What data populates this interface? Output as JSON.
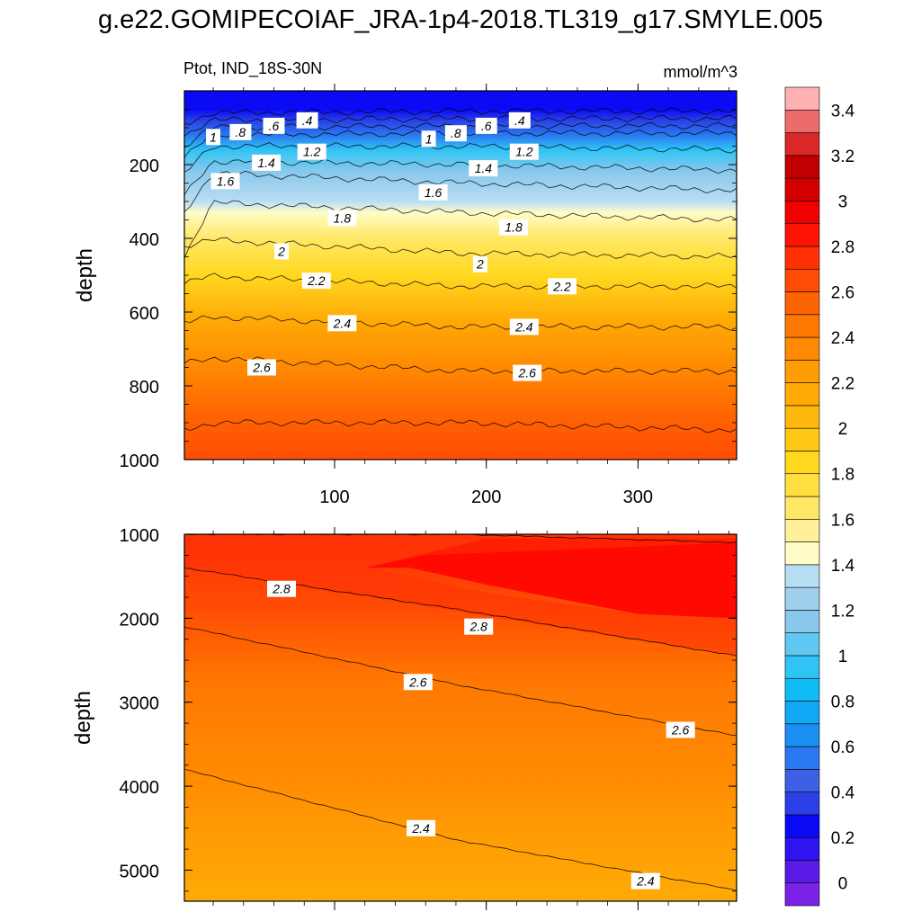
{
  "title": "g.e22.GOMIPECOIAF_JRA-1p4-2018.TL319_g17.SMYLE.005",
  "chart_data": {
    "type": "heatmap",
    "variable_label": "Ptot, IND_18S-30N",
    "units": "mmol/m^3",
    "x_range": [
      1,
      365
    ],
    "x_ticks": [
      "100",
      "200",
      "300"
    ],
    "x_tick_values": [
      100,
      200,
      300
    ],
    "colorbar": {
      "levels": [
        0,
        0.2,
        0.4,
        0.6,
        0.8,
        1,
        1.2,
        1.4,
        1.6,
        1.8,
        2,
        2.2,
        2.4,
        2.6,
        2.8,
        3,
        3.2,
        3.4
      ],
      "labels": [
        "0",
        "0.2",
        "0.4",
        "0.6",
        "0.8",
        "1",
        "1.2",
        "1.4",
        "1.6",
        "1.8",
        "2",
        "2.2",
        "2.4",
        "2.6",
        "2.8",
        "3",
        "3.2",
        "3.4"
      ],
      "colors": [
        "#7a22e6",
        "#5a1ae6",
        "#2e14f0",
        "#0a0af5",
        "#2a40e6",
        "#3e60e6",
        "#2a78f0",
        "#1a90f5",
        "#12a8f8",
        "#10bcf5",
        "#30c4f5",
        "#60c8f0",
        "#8ac8ec",
        "#a0d0ee",
        "#b8def4",
        "#fffcc8",
        "#fff09a",
        "#ffe866",
        "#ffe040",
        "#ffd820",
        "#ffc814",
        "#ffb80c",
        "#ffaa06",
        "#ff9c04",
        "#ff8a02",
        "#ff7802",
        "#ff6402",
        "#ff4c04",
        "#ff3006",
        "#ff1404",
        "#f00000",
        "#d40000",
        "#c00000",
        "#dc2828",
        "#ec6c6c",
        "#ffb0b0"
      ]
    },
    "panels": [
      {
        "name": "upper",
        "ylabel": "depth",
        "y_range": [
          0,
          1000
        ],
        "y_ticks": [
          "200",
          "400",
          "600",
          "800",
          "1000"
        ],
        "y_tick_values": [
          200,
          400,
          600,
          800,
          1000
        ],
        "contour_depths": [
          {
            "level": 0.4,
            "depth": [
              60,
              55,
              55
            ]
          },
          {
            "level": 0.6,
            "depth": [
              80,
              75,
              75
            ]
          },
          {
            "level": 0.8,
            "depth": [
              100,
              95,
              95
            ]
          },
          {
            "level": 1.0,
            "depth": [
              120,
              115,
              115
            ]
          },
          {
            "level": 1.2,
            "depth": [
              150,
              150,
              160
            ]
          },
          {
            "level": 1.4,
            "depth": [
              190,
              200,
              215
            ]
          },
          {
            "level": 1.6,
            "depth": [
              220,
              250,
              270
            ]
          },
          {
            "level": 1.8,
            "depth": [
              300,
              330,
              350
            ]
          },
          {
            "level": 2.0,
            "depth": [
              400,
              440,
              450
            ]
          },
          {
            "level": 2.2,
            "depth": [
              500,
              530,
              530
            ]
          },
          {
            "level": 2.4,
            "depth": [
              610,
              640,
              640
            ]
          },
          {
            "level": 2.6,
            "depth": [
              720,
              760,
              760
            ]
          },
          {
            "level": 2.8,
            "depth": [
              900,
              900,
              920
            ]
          }
        ],
        "contour_labels": [
          {
            "text": "1",
            "x": 20,
            "depth": 125
          },
          {
            "text": ".8",
            "x": 38,
            "depth": 112
          },
          {
            "text": ".6",
            "x": 60,
            "depth": 95
          },
          {
            "text": ".4",
            "x": 82,
            "depth": 80
          },
          {
            "text": "1.4",
            "x": 55,
            "depth": 195
          },
          {
            "text": "1.2",
            "x": 85,
            "depth": 165
          },
          {
            "text": "1.6",
            "x": 28,
            "depth": 245
          },
          {
            "text": "1.8",
            "x": 105,
            "depth": 345
          },
          {
            "text": "2",
            "x": 65,
            "depth": 435
          },
          {
            "text": "2.2",
            "x": 88,
            "depth": 515
          },
          {
            "text": "2.4",
            "x": 105,
            "depth": 630
          },
          {
            "text": "2.6",
            "x": 52,
            "depth": 750
          },
          {
            "text": "1",
            "x": 162,
            "depth": 130
          },
          {
            "text": ".8",
            "x": 180,
            "depth": 115
          },
          {
            "text": ".6",
            "x": 200,
            "depth": 95
          },
          {
            "text": ".4",
            "x": 222,
            "depth": 80
          },
          {
            "text": "1.2",
            "x": 225,
            "depth": 165
          },
          {
            "text": "1.4",
            "x": 198,
            "depth": 210
          },
          {
            "text": "1.6",
            "x": 165,
            "depth": 275
          },
          {
            "text": "1.8",
            "x": 218,
            "depth": 370
          },
          {
            "text": "2",
            "x": 196,
            "depth": 470
          },
          {
            "text": "2.2",
            "x": 250,
            "depth": 530
          },
          {
            "text": "2.4",
            "x": 225,
            "depth": 640
          },
          {
            "text": "2.6",
            "x": 227,
            "depth": 765
          }
        ]
      },
      {
        "name": "lower",
        "ylabel": "depth",
        "y_range": [
          1000,
          5370
        ],
        "y_ticks": [
          "1000",
          "2000",
          "3000",
          "4000",
          "5000"
        ],
        "y_tick_values": [
          1000,
          2000,
          3000,
          4000,
          5000
        ],
        "contour_depths": [
          {
            "level": 3.0,
            "depth": [
              1000,
              1000,
              1100
            ]
          },
          {
            "level": 2.8,
            "depth": [
              1400,
              1900,
              2450
            ]
          },
          {
            "level": 2.6,
            "depth": [
              2100,
              2800,
              3400
            ]
          },
          {
            "level": 2.4,
            "depth": [
              3800,
              4650,
              5240
            ]
          }
        ],
        "contour_labels": [
          {
            "text": "2.8",
            "x": 65,
            "depth": 1650
          },
          {
            "text": "2.8",
            "x": 195,
            "depth": 2100
          },
          {
            "text": "2.6",
            "x": 155,
            "depth": 2760
          },
          {
            "text": "2.6",
            "x": 328,
            "depth": 3330
          },
          {
            "text": "2.4",
            "x": 157,
            "depth": 4500
          },
          {
            "text": "2.4",
            "x": 305,
            "depth": 5130
          }
        ]
      }
    ]
  }
}
